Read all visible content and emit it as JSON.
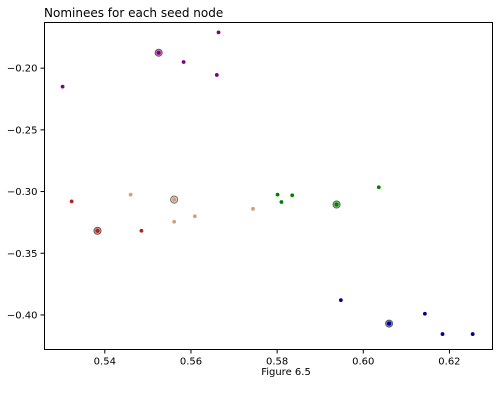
{
  "figure": {
    "caption": "Figure 6.5"
  },
  "chart_data": {
    "type": "scatter",
    "title": "Nominees for each seed node",
    "xlabel": "",
    "ylabel": "",
    "xlim": [
      0.526,
      0.63
    ],
    "ylim": [
      -0.428,
      -0.163
    ],
    "xticks": [
      0.54,
      0.56,
      0.58,
      0.6,
      0.62
    ],
    "xtick_labels": [
      "0.54",
      "0.56",
      "0.58",
      "0.60",
      "0.62"
    ],
    "yticks": [
      -0.2,
      -0.25,
      -0.3,
      -0.35,
      -0.4
    ],
    "ytick_labels": [
      "−0.20",
      "−0.25",
      "−0.30",
      "−0.35",
      "−0.40"
    ],
    "grid": false,
    "legend": false,
    "series": [
      {
        "color": "#800080",
        "seed": [
          0.5525,
          -0.1875
        ],
        "x": [
          0.5302,
          0.5525,
          0.5583,
          0.566,
          0.5664
        ],
        "y": [
          -0.215,
          -0.1875,
          -0.195,
          -0.2055,
          -0.171
        ]
      },
      {
        "color": "#b22222",
        "seed": [
          0.5383,
          -0.3318
        ],
        "x": [
          0.5323,
          0.5383,
          0.5485
        ],
        "y": [
          -0.308,
          -0.3318,
          -0.3318
        ]
      },
      {
        "color": "#d2a07c",
        "seed": [
          0.5561,
          -0.3065
        ],
        "x": [
          0.546,
          0.5561,
          0.5561,
          0.5609,
          0.5744
        ],
        "y": [
          -0.3025,
          -0.3065,
          -0.3245,
          -0.32,
          -0.314
        ]
      },
      {
        "color": "#008000",
        "seed": [
          0.5938,
          -0.3105
        ],
        "x": [
          0.5801,
          0.581,
          0.5835,
          0.5938,
          0.6036
        ],
        "y": [
          -0.3025,
          -0.3085,
          -0.303,
          -0.3105,
          -0.2965
        ]
      },
      {
        "color": "#00008b",
        "seed": [
          0.606,
          -0.407
        ],
        "x": [
          0.5948,
          0.606,
          0.6143,
          0.6184,
          0.6254
        ],
        "y": [
          -0.388,
          -0.407,
          -0.399,
          -0.4155,
          -0.4155
        ]
      }
    ]
  }
}
